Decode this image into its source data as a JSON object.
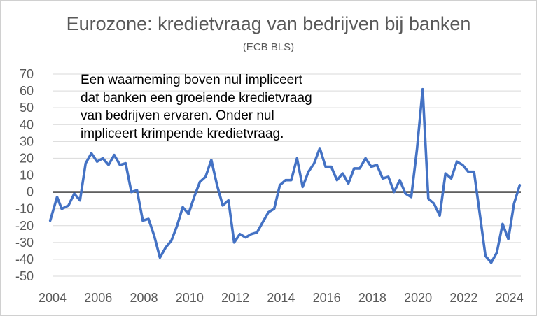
{
  "chart_data": {
    "type": "line",
    "title": "Eurozone: kredietvraag van bedrijven bij banken",
    "subtitle": "(ECB BLS)",
    "annotation": [
      "Een waarneming boven nul impliceert",
      "dat banken een groeiende kredietvraag",
      "van bedrijven ervaren. Onder nul",
      "impliceert krimpende kredietvraag."
    ],
    "xlabel": "",
    "ylabel": "",
    "xlim": [
      2004,
      2024.5
    ],
    "ylim": [
      -50,
      70
    ],
    "x_ticks": [
      "2004",
      "2006",
      "2008",
      "2010",
      "2012",
      "2014",
      "2016",
      "2018",
      "2020",
      "2022",
      "2024"
    ],
    "y_ticks": [
      "70",
      "60",
      "50",
      "40",
      "30",
      "20",
      "10",
      "0",
      "-10",
      "-20",
      "-30",
      "-40",
      "-50"
    ],
    "grid": "horizontal",
    "zero_line": true,
    "colors": {
      "series": "#4472c4",
      "grid": "#d9d9d9",
      "zero_line": "#000000"
    },
    "series": [
      {
        "x": [
          2003.9,
          2004.2,
          2004.4,
          2004.7,
          2004.95,
          2005.2,
          2005.45,
          2005.7,
          2005.95,
          2006.2,
          2006.45,
          2006.7,
          2006.95,
          2007.2,
          2007.45,
          2007.7,
          2007.95,
          2008.2,
          2008.45,
          2008.7,
          2008.95,
          2009.2,
          2009.45,
          2009.7,
          2009.95,
          2010.2,
          2010.45,
          2010.7,
          2010.95,
          2011.2,
          2011.45,
          2011.7,
          2011.95,
          2012.2,
          2012.45,
          2012.7,
          2012.95,
          2013.2,
          2013.45,
          2013.7,
          2013.95,
          2014.2,
          2014.45,
          2014.7,
          2014.95,
          2015.2,
          2015.45,
          2015.7,
          2015.95,
          2016.2,
          2016.45,
          2016.7,
          2016.95,
          2017.2,
          2017.45,
          2017.7,
          2017.95,
          2018.2,
          2018.45,
          2018.7,
          2018.95,
          2019.2,
          2019.45,
          2019.7,
          2019.95,
          2020.2,
          2020.45,
          2020.7,
          2020.95,
          2021.2,
          2021.45,
          2021.7,
          2021.95,
          2022.2,
          2022.45,
          2022.7,
          2022.95,
          2023.2,
          2023.45,
          2023.7,
          2023.95,
          2024.2,
          2024.45
        ],
        "values": [
          -17,
          -3,
          -10,
          -8,
          -1,
          -5,
          17,
          23,
          18,
          20,
          16,
          22,
          16,
          17,
          0,
          1,
          -17,
          -16,
          -26,
          -39,
          -33,
          -29,
          -20,
          -9,
          -13,
          -3,
          6,
          9,
          19,
          4,
          -8,
          -5,
          -30,
          -25,
          -27,
          -25,
          -24,
          -18,
          -12,
          -10,
          4,
          7,
          7,
          20,
          3,
          12,
          17,
          26,
          15,
          15,
          7,
          11,
          5,
          14,
          14,
          20,
          15,
          16,
          8,
          9,
          0,
          7,
          -1,
          -3,
          25,
          61,
          -4,
          -7,
          -14,
          11,
          8,
          18,
          16,
          12,
          12,
          -13,
          -38,
          -42,
          -36,
          -19,
          -28,
          -7,
          4
        ]
      }
    ]
  }
}
